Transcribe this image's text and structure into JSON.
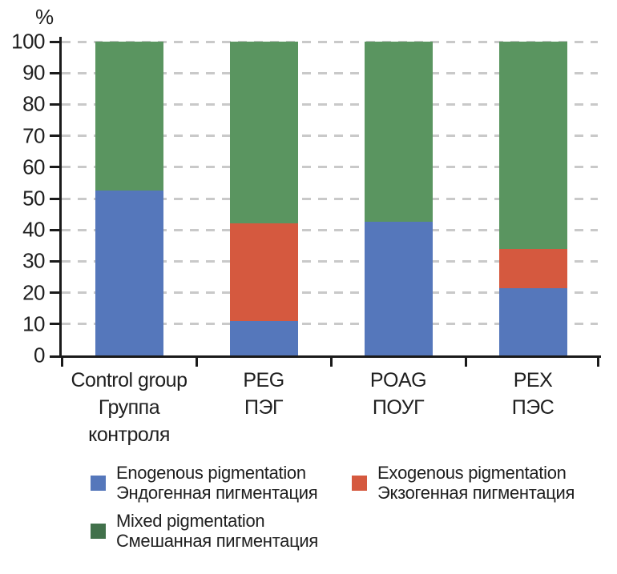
{
  "chart_data": {
    "type": "bar",
    "stacked": true,
    "title": "",
    "xlabel": "",
    "ylabel": "%",
    "ylim": [
      0,
      100
    ],
    "yticks": [
      0,
      10,
      20,
      30,
      40,
      50,
      60,
      70,
      80,
      90,
      100
    ],
    "grid": "horizontal-dashed",
    "legend_position": "bottom",
    "categories": [
      {
        "label_lines": [
          "Control group",
          "Группа",
          "контроля"
        ]
      },
      {
        "label_lines": [
          "PEG",
          "ПЭГ"
        ]
      },
      {
        "label_lines": [
          "POAG",
          "ПОУГ"
        ]
      },
      {
        "label_lines": [
          "PEX",
          "ПЭС"
        ]
      }
    ],
    "series": [
      {
        "name_en": "Enogenous pigmentation",
        "name_ru": "Эндогенная пигментация",
        "color": "#5577BB",
        "swatch_color": "#5577BB",
        "values": [
          52.5,
          11,
          42.5,
          21.5
        ]
      },
      {
        "name_en": "Exogenous pigmentation",
        "name_ru": "Экзогенная пигментация",
        "color": "#D5593F",
        "swatch_color": "#D5593F",
        "values": [
          0,
          31,
          0,
          12.5
        ]
      },
      {
        "name_en": "Mixed pigmentation",
        "name_ru": "Смешанная пигментация",
        "color": "#5A9560",
        "swatch_color": "#41714B",
        "values": [
          47.5,
          58,
          57.5,
          66
        ]
      }
    ],
    "colors": {
      "axis": "#1a1a1a",
      "gridline": "#c9c9c9",
      "text": "#1f1f1f",
      "background": "#ffffff"
    }
  }
}
